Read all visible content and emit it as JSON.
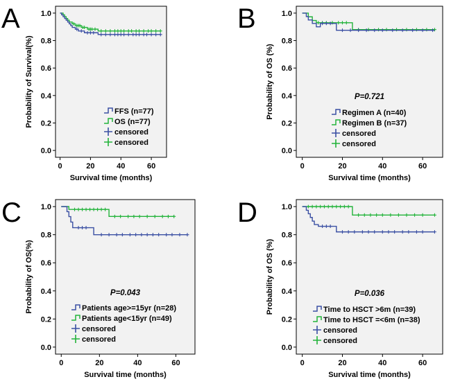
{
  "colors": {
    "blue": "#3a4fa3",
    "green": "#22b33a",
    "text": "#000000",
    "plot_bg": "#f2f2f2"
  },
  "chart_data": [
    {
      "type": "line",
      "panel_label": "A",
      "xlabel": "Survival time (months)",
      "ylabel": "Probability of Survival(%)",
      "xlim": [
        -3,
        70
      ],
      "ylim": [
        -0.05,
        1.05
      ],
      "xticks": [
        0,
        20,
        40,
        60
      ],
      "xtick_labels": [
        "0",
        "20",
        "40",
        "60"
      ],
      "yticks": [
        0,
        0.2,
        0.4,
        0.6,
        0.8,
        1.0
      ],
      "ytick_labels": [
        "0.0",
        "0.2",
        "0.4",
        "0.6",
        "0.8",
        "1.0"
      ],
      "pvalue": "",
      "series": [
        {
          "name": "FFS (n=77)",
          "color": "blue",
          "step_x": [
            0,
            1,
            2,
            3,
            4,
            5,
            6,
            7,
            8,
            10,
            12,
            16,
            25,
            66
          ],
          "step_y": [
            1.0,
            0.987,
            0.974,
            0.961,
            0.948,
            0.935,
            0.922,
            0.909,
            0.896,
            0.883,
            0.87,
            0.857,
            0.844,
            0.844
          ],
          "censored": [
            11,
            14,
            18,
            20,
            22,
            27,
            30,
            33,
            36,
            38,
            40,
            42,
            45,
            48,
            50,
            52,
            55,
            57,
            60,
            63,
            66
          ]
        },
        {
          "name": "OS (n=77)",
          "color": "green",
          "step_x": [
            0,
            2,
            3,
            4,
            5,
            6,
            8,
            10,
            14,
            18,
            25,
            66
          ],
          "step_y": [
            1.0,
            0.987,
            0.974,
            0.961,
            0.948,
            0.935,
            0.922,
            0.909,
            0.896,
            0.883,
            0.87,
            0.87
          ],
          "censored": [
            9,
            11,
            12,
            13,
            15,
            16,
            19,
            20,
            21,
            23,
            27,
            30,
            33,
            36,
            38,
            40,
            42,
            45,
            47,
            50,
            52,
            55,
            58,
            60,
            63,
            66
          ]
        }
      ],
      "legend": [
        {
          "label": "FFS (n=77)",
          "kind": "step",
          "color": "blue"
        },
        {
          "label": "OS (n=77)",
          "kind": "step",
          "color": "green"
        },
        {
          "label": "censored",
          "kind": "plus",
          "color": "blue"
        },
        {
          "label": "censored",
          "kind": "plus",
          "color": "green"
        }
      ]
    },
    {
      "type": "line",
      "panel_label": "B",
      "xlabel": "Survival time (months)",
      "ylabel": "Probability of OS (%)",
      "xlim": [
        -3,
        70
      ],
      "ylim": [
        -0.05,
        1.05
      ],
      "xticks": [
        0,
        20,
        40,
        60
      ],
      "xtick_labels": [
        "0",
        "20",
        "40",
        "60"
      ],
      "yticks": [
        0,
        0.2,
        0.4,
        0.6,
        0.8,
        1.0
      ],
      "ytick_labels": [
        "0.0",
        "0.2",
        "0.4",
        "0.6",
        "0.8",
        "1.0"
      ],
      "pvalue": "P=0.721",
      "series": [
        {
          "name": "Regimen A (n=40)",
          "color": "blue",
          "step_x": [
            0,
            2,
            3,
            5,
            7,
            9,
            17,
            66
          ],
          "step_y": [
            1.0,
            0.975,
            0.95,
            0.925,
            0.9,
            0.925,
            0.875,
            0.875
          ],
          "censored": [
            10,
            12,
            14,
            20,
            24,
            28,
            32,
            36,
            40,
            45,
            50,
            55,
            60,
            65
          ]
        },
        {
          "name": "Regimen B (n=37)",
          "color": "green",
          "step_x": [
            0,
            3,
            5,
            7,
            25,
            66
          ],
          "step_y": [
            1.0,
            0.973,
            0.946,
            0.93,
            0.88,
            0.88
          ],
          "censored": [
            8,
            10,
            12,
            15,
            18,
            20,
            22,
            28,
            33,
            38,
            42,
            47,
            52,
            57,
            62,
            66
          ]
        }
      ],
      "legend": [
        {
          "label": "Regimen A (n=40)",
          "kind": "step",
          "color": "blue"
        },
        {
          "label": "Regimen B (n=37)",
          "kind": "step",
          "color": "green"
        },
        {
          "label": "censored",
          "kind": "plus",
          "color": "blue"
        },
        {
          "label": "censored",
          "kind": "plus",
          "color": "green"
        }
      ]
    },
    {
      "type": "line",
      "panel_label": "C",
      "xlabel": "Survival time (months)",
      "ylabel": "Probability of  OS(%)",
      "xlim": [
        -3,
        70
      ],
      "ylim": [
        -0.05,
        1.05
      ],
      "xticks": [
        0,
        20,
        40,
        60
      ],
      "xtick_labels": [
        "0",
        "20",
        "40",
        "60"
      ],
      "yticks": [
        0,
        0.2,
        0.4,
        0.6,
        0.8,
        1.0
      ],
      "ytick_labels": [
        "0.0",
        "0.2",
        "0.4",
        "0.6",
        "0.8",
        "1.0"
      ],
      "pvalue": "P=0.043",
      "series": [
        {
          "name": "Patients age>=15yr (n=28)",
          "color": "blue",
          "step_x": [
            0,
            3,
            4,
            5,
            6,
            17,
            66
          ],
          "step_y": [
            1.0,
            0.964,
            0.929,
            0.89,
            0.85,
            0.8,
            0.8
          ],
          "censored": [
            9,
            11,
            13,
            21,
            25,
            29,
            32,
            36,
            39,
            42,
            45,
            48,
            51,
            55,
            58,
            62,
            66
          ]
        },
        {
          "name": "Patients age<15yr (n=49)",
          "color": "green",
          "step_x": [
            0,
            4,
            25,
            59
          ],
          "step_y": [
            1.0,
            0.98,
            0.93,
            0.93
          ],
          "censored": [
            7,
            9,
            11,
            13,
            15,
            17,
            19,
            21,
            23,
            28,
            31,
            35,
            38,
            41,
            45,
            49,
            53,
            56,
            59
          ]
        }
      ],
      "legend": [
        {
          "label": "Patients age>=15yr (n=28)",
          "kind": "step",
          "color": "blue"
        },
        {
          "label": "Patients age<15yr (n=49)",
          "kind": "step",
          "color": "green"
        },
        {
          "label": "censored",
          "kind": "plus",
          "color": "blue"
        },
        {
          "label": "censored",
          "kind": "plus",
          "color": "green"
        }
      ]
    },
    {
      "type": "line",
      "panel_label": "D",
      "xlabel": "Survival time (months)",
      "ylabel": "Probability of OS (%)",
      "xlim": [
        -3,
        70
      ],
      "ylim": [
        -0.05,
        1.05
      ],
      "xticks": [
        0,
        20,
        40,
        60
      ],
      "xtick_labels": [
        "0",
        "20",
        "40",
        "60"
      ],
      "yticks": [
        0,
        0.2,
        0.4,
        0.6,
        0.8,
        1.0
      ],
      "ytick_labels": [
        "0.0",
        "0.2",
        "0.4",
        "0.6",
        "0.8",
        "1.0"
      ],
      "pvalue": "P=0.036",
      "series": [
        {
          "name": "Time to HSCT >6m (n=39)",
          "color": "blue",
          "step_x": [
            0,
            2,
            3,
            4,
            5,
            6,
            8,
            17,
            66
          ],
          "step_y": [
            1.0,
            0.974,
            0.949,
            0.923,
            0.897,
            0.872,
            0.86,
            0.82,
            0.82
          ],
          "censored": [
            10,
            12,
            14,
            20,
            23,
            26,
            30,
            33,
            36,
            40,
            43,
            46,
            50,
            53,
            57,
            60,
            66
          ]
        },
        {
          "name": "Time to HSCT =<6m (n=38)",
          "color": "green",
          "step_x": [
            0,
            25,
            66
          ],
          "step_y": [
            1.0,
            0.94,
            0.94
          ],
          "censored": [
            3,
            5,
            7,
            9,
            11,
            13,
            15,
            17,
            19,
            21,
            23,
            28,
            31,
            34,
            37,
            40,
            44,
            48,
            52,
            56,
            60,
            66
          ]
        }
      ],
      "legend": [
        {
          "label": "Time to HSCT >6m (n=39)",
          "kind": "step",
          "color": "blue"
        },
        {
          "label": "Time to HSCT =<6m (n=38)",
          "kind": "step",
          "color": "green"
        },
        {
          "label": "censored",
          "kind": "plus",
          "color": "blue"
        },
        {
          "label": "censored",
          "kind": "plus",
          "color": "green"
        }
      ]
    }
  ]
}
